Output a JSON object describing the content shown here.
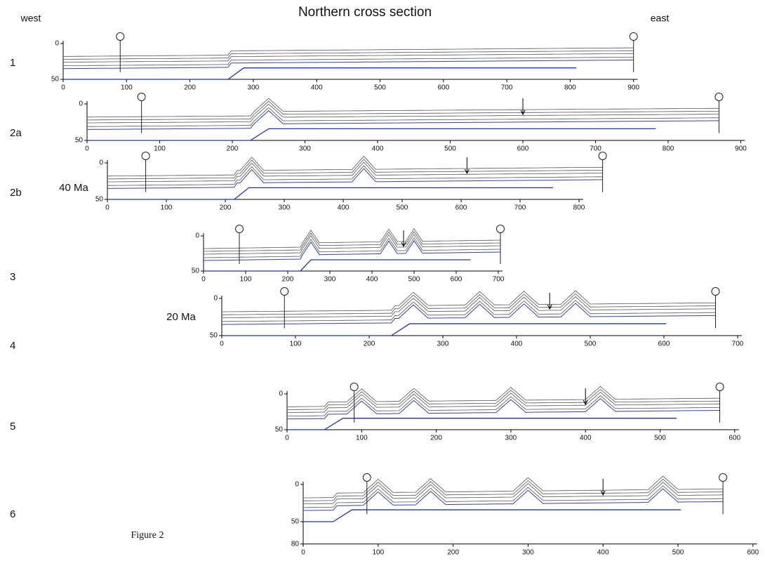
{
  "header": {
    "title": "Northern cross section",
    "west": "west",
    "east": "east"
  },
  "figure_label": "Figure 2",
  "panels": [
    {
      "label": "1",
      "xticks": [
        0,
        100,
        200,
        300,
        400,
        500,
        600,
        700,
        800,
        900
      ],
      "yticks": [
        0,
        50
      ]
    },
    {
      "label": "2a",
      "xticks": [
        0,
        100,
        200,
        300,
        400,
        500,
        600,
        700,
        800,
        900
      ],
      "yticks": [
        0,
        50
      ]
    },
    {
      "label": "2b",
      "age": "40 Ma",
      "xticks": [
        0,
        100,
        200,
        300,
        400,
        500,
        600,
        700,
        800
      ],
      "yticks": [
        0,
        50
      ]
    },
    {
      "label": "3",
      "xticks": [
        0,
        100,
        200,
        300,
        400,
        500,
        600,
        700
      ],
      "yticks": [
        0,
        50
      ]
    },
    {
      "label": "4",
      "age": "20 Ma",
      "xticks": [
        0,
        100,
        200,
        300,
        400,
        500,
        600,
        700
      ],
      "yticks": [
        0,
        50
      ]
    },
    {
      "label": "5",
      "xticks": [
        0,
        100,
        200,
        300,
        400,
        500,
        600
      ],
      "yticks": [
        0,
        50
      ]
    },
    {
      "label": "6",
      "xticks": [
        0,
        100,
        200,
        300,
        400,
        500,
        600
      ],
      "yticks": [
        0,
        50,
        80
      ]
    }
  ]
}
